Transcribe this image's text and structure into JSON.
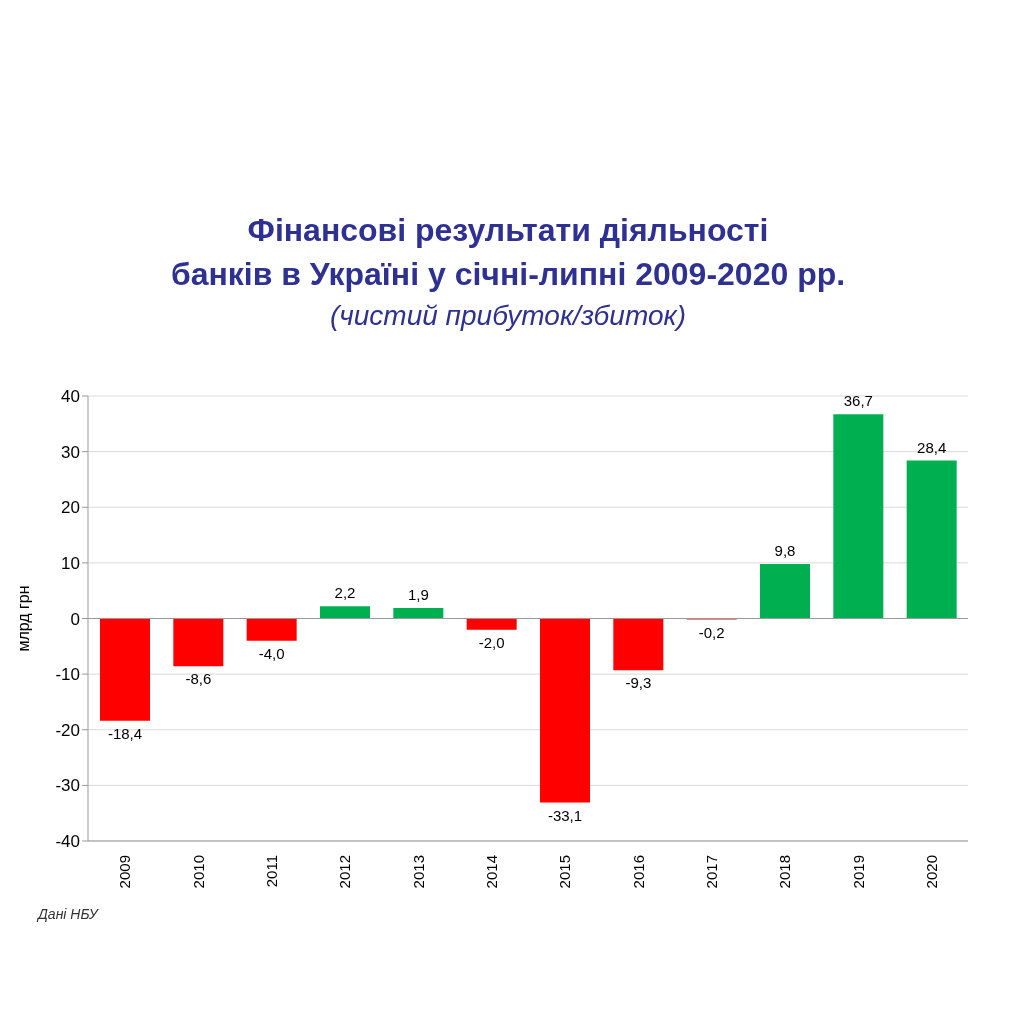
{
  "chart_data": {
    "type": "bar",
    "title": "Фінансові результати діяльності\nбанків в Україні у січні-липні 2009-2020 рр.",
    "subtitle": "(чистий прибуток/збиток)",
    "ylabel": "млрд грн",
    "categories": [
      "2009",
      "2010",
      "2011",
      "2012",
      "2013",
      "2014",
      "2015",
      "2016",
      "2017",
      "2018",
      "2019",
      "2020"
    ],
    "values": [
      -18.4,
      -8.6,
      -4.0,
      2.2,
      1.9,
      -2.0,
      -33.1,
      -9.3,
      -0.2,
      9.8,
      36.7,
      28.4
    ],
    "value_labels": [
      "-18,4",
      "-8,6",
      "-4,0",
      "2,2",
      "1,9",
      "-2,0",
      "-33,1",
      "-9,3",
      "-0,2",
      "9,8",
      "36,7",
      "28,4"
    ],
    "colors": [
      "#ff0000",
      "#ff0000",
      "#ff0000",
      "#00b050",
      "#00b050",
      "#ff0000",
      "#ff0000",
      "#ff0000",
      "#ff0000",
      "#00b050",
      "#00b050",
      "#00b050"
    ],
    "ylim": [
      -40,
      40
    ],
    "yticks": [
      -40,
      -30,
      -20,
      -10,
      0,
      10,
      20,
      30,
      40
    ],
    "grid": "y",
    "annotations": [
      "Дані НБУ"
    ]
  }
}
